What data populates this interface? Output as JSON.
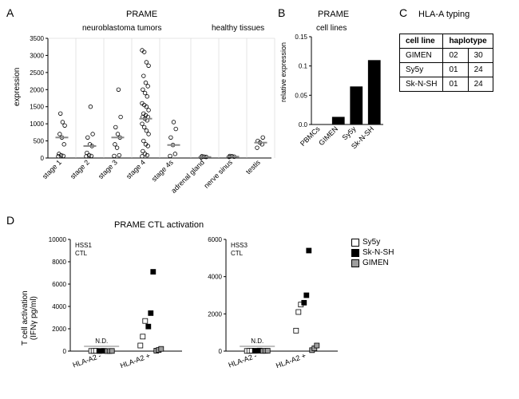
{
  "panelA": {
    "label": "A",
    "title": "PRAME",
    "subtitle_left": "neuroblastoma tumors",
    "subtitle_right": "healthy tissues",
    "ylabel": "expression",
    "ylim": [
      0,
      3500
    ],
    "yticks": [
      0,
      500,
      1000,
      1500,
      2000,
      2500,
      3000,
      3500
    ],
    "groups": [
      "stage 1",
      "stage 2",
      "stage 3",
      "stage 4",
      "stage 4s",
      "adrenal gland",
      "nerve sinus",
      "testis"
    ],
    "healthy_start_index": 5,
    "medians": [
      600,
      350,
      600,
      1150,
      380,
      30,
      40,
      450
    ],
    "points": [
      [
        50,
        60,
        80,
        120,
        400,
        600,
        700,
        950,
        1050,
        1300
      ],
      [
        50,
        60,
        80,
        150,
        350,
        400,
        600,
        700,
        1500
      ],
      [
        60,
        80,
        300,
        400,
        600,
        700,
        900,
        1200,
        2000
      ],
      [
        50,
        80,
        120,
        200,
        350,
        400,
        500,
        700,
        800,
        900,
        1000,
        1100,
        1150,
        1200,
        1200,
        1250,
        1300,
        1400,
        1500,
        1550,
        1600,
        1800,
        1900,
        2000,
        2100,
        2200,
        2400,
        2700,
        2800,
        3100,
        3150
      ],
      [
        60,
        120,
        380,
        600,
        850,
        1050
      ],
      [
        20,
        30,
        40,
        50
      ],
      [
        30,
        40,
        50,
        60
      ],
      [
        300,
        400,
        450,
        500,
        600
      ]
    ],
    "axis_color": "#000000",
    "grid_color": "#cccccc",
    "point_color": "#000000",
    "median_color": "#888888"
  },
  "panelB": {
    "label": "B",
    "title": "PRAME",
    "subtitle": "cell lines",
    "ylabel": "relative expression",
    "ylim": [
      0,
      0.15
    ],
    "yticks": [
      0,
      0.05,
      0.1,
      0.15
    ],
    "categories": [
      "PBMCs",
      "GIMEN",
      "Sy5y",
      "Sk-N-SH"
    ],
    "values": [
      0.0005,
      0.013,
      0.065,
      0.11
    ],
    "bar_color": "#000000",
    "axis_color": "#000000"
  },
  "panelC": {
    "label": "C",
    "title": "HLA-A typing",
    "header": [
      "cell line",
      "haplotype"
    ],
    "rows": [
      [
        "GIMEN",
        "02",
        "30"
      ],
      [
        "Sy5y",
        "01",
        "24"
      ],
      [
        "Sk-N-SH",
        "01",
        "24"
      ]
    ]
  },
  "panelD": {
    "label": "D",
    "title": "PRAME CTL activation",
    "ylabel": "T cell activation\n(IFNγ pg/ml)",
    "x_categories": [
      "HLA-A2 -",
      "HLA-A2 +"
    ],
    "nd_label": "N.D.",
    "legend": [
      {
        "name": "Sy5y",
        "fill": "#ffffff",
        "stroke": "#000000"
      },
      {
        "name": "Sk-N-SH",
        "fill": "#000000",
        "stroke": "#000000"
      },
      {
        "name": "GIMEN",
        "fill": "#9e9e9e",
        "stroke": "#000000"
      }
    ],
    "subplots": [
      {
        "ctl": "HSS1\nCTL",
        "ylim": [
          0,
          10000
        ],
        "yticks": [
          0,
          2000,
          4000,
          6000,
          8000,
          10000
        ],
        "points_neg": {
          "Sy5y": [
            15,
            20,
            30
          ],
          "Sk-N-SH": [
            10,
            20,
            25
          ],
          "GIMEN": [
            5,
            10,
            15
          ]
        },
        "points_pos": {
          "Sy5y": [
            500,
            1300,
            2700
          ],
          "Sk-N-SH": [
            2200,
            3400,
            7100
          ],
          "GIMEN": [
            40,
            100,
            200
          ]
        }
      },
      {
        "ctl": "HSS3\nCTL",
        "ylim": [
          0,
          6000
        ],
        "yticks": [
          0,
          2000,
          4000,
          6000
        ],
        "points_neg": {
          "Sy5y": [
            10,
            15,
            25
          ],
          "Sk-N-SH": [
            15,
            20,
            30
          ],
          "GIMEN": [
            10,
            15,
            20
          ]
        },
        "points_pos": {
          "Sy5y": [
            1100,
            2100,
            2500
          ],
          "Sk-N-SH": [
            2600,
            3000,
            5400
          ],
          "GIMEN": [
            50,
            150,
            300
          ]
        }
      }
    ],
    "axis_color": "#000000"
  }
}
